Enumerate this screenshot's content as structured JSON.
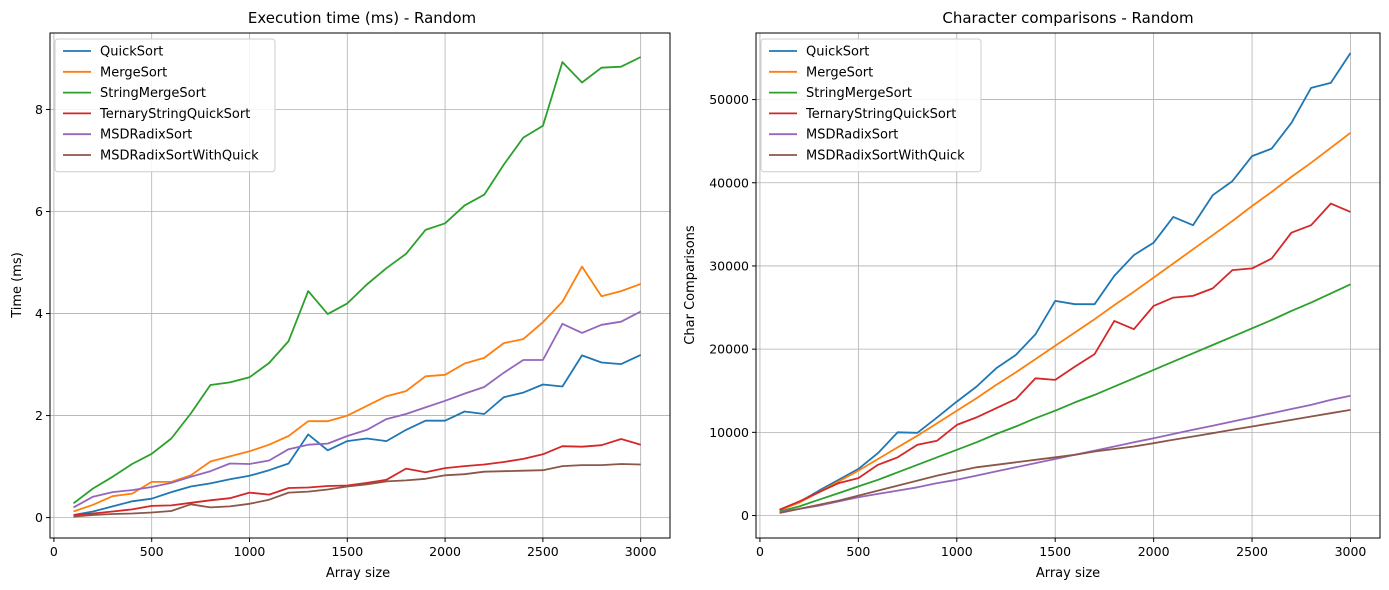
{
  "chart_data": [
    {
      "type": "line",
      "title": "Execution time (ms) - Random",
      "xlabel": "Array size",
      "ylabel": "Time (ms)",
      "xlim": [
        -20,
        3150
      ],
      "ylim": [
        -0.4,
        9.5
      ],
      "xticks": [
        0,
        500,
        1000,
        1500,
        2000,
        2500,
        3000
      ],
      "yticks": [
        0,
        2,
        4,
        6,
        8
      ],
      "grid": true,
      "legend_position": "upper-left",
      "x": [
        100,
        200,
        300,
        400,
        500,
        600,
        700,
        800,
        900,
        1000,
        1100,
        1200,
        1300,
        1400,
        1500,
        1600,
        1700,
        1800,
        1900,
        2000,
        2100,
        2200,
        2300,
        2400,
        2500,
        2600,
        2700,
        2800,
        2900,
        3000
      ],
      "series": [
        {
          "name": "QuickSort",
          "color": "#1f77b4",
          "values": [
            0.05,
            0.12,
            0.22,
            0.32,
            0.37,
            0.5,
            0.61,
            0.67,
            0.75,
            0.82,
            0.93,
            1.06,
            1.63,
            1.32,
            1.5,
            1.55,
            1.5,
            1.72,
            1.9,
            1.9,
            2.08,
            2.03,
            2.36,
            2.45,
            2.61,
            2.57,
            3.18,
            3.04,
            3.01,
            3.19
          ]
        },
        {
          "name": "MergeSort",
          "color": "#ff7f0e",
          "values": [
            0.12,
            0.25,
            0.42,
            0.47,
            0.7,
            0.7,
            0.83,
            1.1,
            1.2,
            1.3,
            1.43,
            1.6,
            1.89,
            1.89,
            2.0,
            2.19,
            2.38,
            2.48,
            2.77,
            2.8,
            3.02,
            3.13,
            3.42,
            3.5,
            3.83,
            4.23,
            4.92,
            4.34,
            4.44,
            4.58
          ]
        },
        {
          "name": "StringMergeSort",
          "color": "#2ca02c",
          "values": [
            0.28,
            0.57,
            0.8,
            1.05,
            1.25,
            1.55,
            2.04,
            2.6,
            2.65,
            2.75,
            3.03,
            3.46,
            4.44,
            3.99,
            4.2,
            4.57,
            4.89,
            5.17,
            5.64,
            5.77,
            6.12,
            6.33,
            6.92,
            7.45,
            7.68,
            8.93,
            8.53,
            8.82,
            8.84,
            9.03
          ]
        },
        {
          "name": "TernaryStringQuickSort",
          "color": "#d62728",
          "values": [
            0.05,
            0.08,
            0.12,
            0.16,
            0.23,
            0.24,
            0.29,
            0.34,
            0.38,
            0.49,
            0.45,
            0.58,
            0.59,
            0.62,
            0.63,
            0.68,
            0.74,
            0.96,
            0.89,
            0.97,
            1.01,
            1.04,
            1.09,
            1.15,
            1.24,
            1.4,
            1.39,
            1.42,
            1.54,
            1.43
          ]
        },
        {
          "name": "MSDRadixSort",
          "color": "#9467bd",
          "values": [
            0.2,
            0.41,
            0.5,
            0.54,
            0.6,
            0.68,
            0.8,
            0.91,
            1.06,
            1.05,
            1.12,
            1.34,
            1.43,
            1.45,
            1.6,
            1.72,
            1.93,
            2.03,
            2.16,
            2.29,
            2.43,
            2.56,
            2.84,
            3.09,
            3.09,
            3.8,
            3.62,
            3.78,
            3.84,
            4.04
          ]
        },
        {
          "name": "MSDRadixSortWithQuick",
          "color": "#8c564b",
          "values": [
            0.02,
            0.05,
            0.07,
            0.08,
            0.1,
            0.13,
            0.26,
            0.2,
            0.22,
            0.27,
            0.35,
            0.49,
            0.51,
            0.55,
            0.61,
            0.65,
            0.71,
            0.73,
            0.76,
            0.83,
            0.85,
            0.9,
            0.91,
            0.92,
            0.93,
            1.01,
            1.03,
            1.03,
            1.05,
            1.04
          ]
        }
      ]
    },
    {
      "type": "line",
      "title": "Character comparisons - Random",
      "xlabel": "Array size",
      "ylabel": "Char Comparisons",
      "xlim": [
        -20,
        3150
      ],
      "ylim": [
        -2700,
        58000
      ],
      "xticks": [
        0,
        500,
        1000,
        1500,
        2000,
        2500,
        3000
      ],
      "yticks": [
        0,
        10000,
        20000,
        30000,
        40000,
        50000
      ],
      "grid": true,
      "legend_position": "upper-left",
      "x": [
        100,
        200,
        300,
        400,
        500,
        600,
        700,
        800,
        900,
        1000,
        1100,
        1200,
        1300,
        1400,
        1500,
        1600,
        1700,
        1800,
        1900,
        2000,
        2100,
        2200,
        2300,
        2400,
        2500,
        2600,
        2700,
        2800,
        2900,
        3000
      ],
      "series": [
        {
          "name": "QuickSort",
          "color": "#1f77b4",
          "values": [
            700,
            1600,
            3000,
            4300,
            5600,
            7500,
            10000,
            9950,
            11800,
            13700,
            15500,
            17700,
            19300,
            21800,
            25800,
            25400,
            25400,
            28800,
            31300,
            32800,
            35900,
            34900,
            38500,
            40200,
            43200,
            44100,
            47200,
            51400,
            52000,
            55600
          ]
        },
        {
          "name": "MergeSort",
          "color": "#ff7f0e",
          "values": [
            650,
            1550,
            2800,
            4100,
            5400,
            6800,
            8200,
            9600,
            11100,
            12600,
            14100,
            15700,
            17200,
            18800,
            20400,
            22000,
            23600,
            25300,
            26900,
            28600,
            30300,
            32000,
            33700,
            35400,
            37200,
            38900,
            40700,
            42400,
            44200,
            46000
          ]
        },
        {
          "name": "StringMergeSort",
          "color": "#2ca02c",
          "values": [
            500,
            1100,
            1900,
            2700,
            3500,
            4300,
            5200,
            6100,
            7000,
            7900,
            8800,
            9800,
            10700,
            11700,
            12600,
            13600,
            14500,
            15500,
            16500,
            17500,
            18500,
            19500,
            20500,
            21500,
            22500,
            23500,
            24600,
            25600,
            26700,
            27800
          ]
        },
        {
          "name": "TernaryStringQuickSort",
          "color": "#d62728",
          "values": [
            700,
            1700,
            2800,
            3900,
            4500,
            6100,
            7000,
            8500,
            9000,
            10900,
            11800,
            12900,
            14000,
            16500,
            16300,
            17900,
            19400,
            23400,
            22400,
            25200,
            26200,
            26400,
            27300,
            29500,
            29700,
            30900,
            34000,
            34900,
            37500,
            36500
          ]
        },
        {
          "name": "MSDRadixSort",
          "color": "#9467bd",
          "values": [
            400,
            800,
            1200,
            1700,
            2200,
            2600,
            3000,
            3400,
            3900,
            4300,
            4800,
            5300,
            5800,
            6300,
            6800,
            7300,
            7800,
            8300,
            8800,
            9300,
            9800,
            10300,
            10800,
            11300,
            11800,
            12300,
            12800,
            13300,
            13900,
            14400
          ]
        },
        {
          "name": "MSDRadixSortWithQuick",
          "color": "#8c564b",
          "values": [
            300,
            800,
            1300,
            1800,
            2400,
            3000,
            3600,
            4200,
            4800,
            5300,
            5800,
            6100,
            6400,
            6700,
            7000,
            7300,
            7700,
            8000,
            8300,
            8700,
            9100,
            9500,
            9900,
            10300,
            10700,
            11100,
            11500,
            11900,
            12300,
            12700
          ]
        }
      ]
    }
  ]
}
